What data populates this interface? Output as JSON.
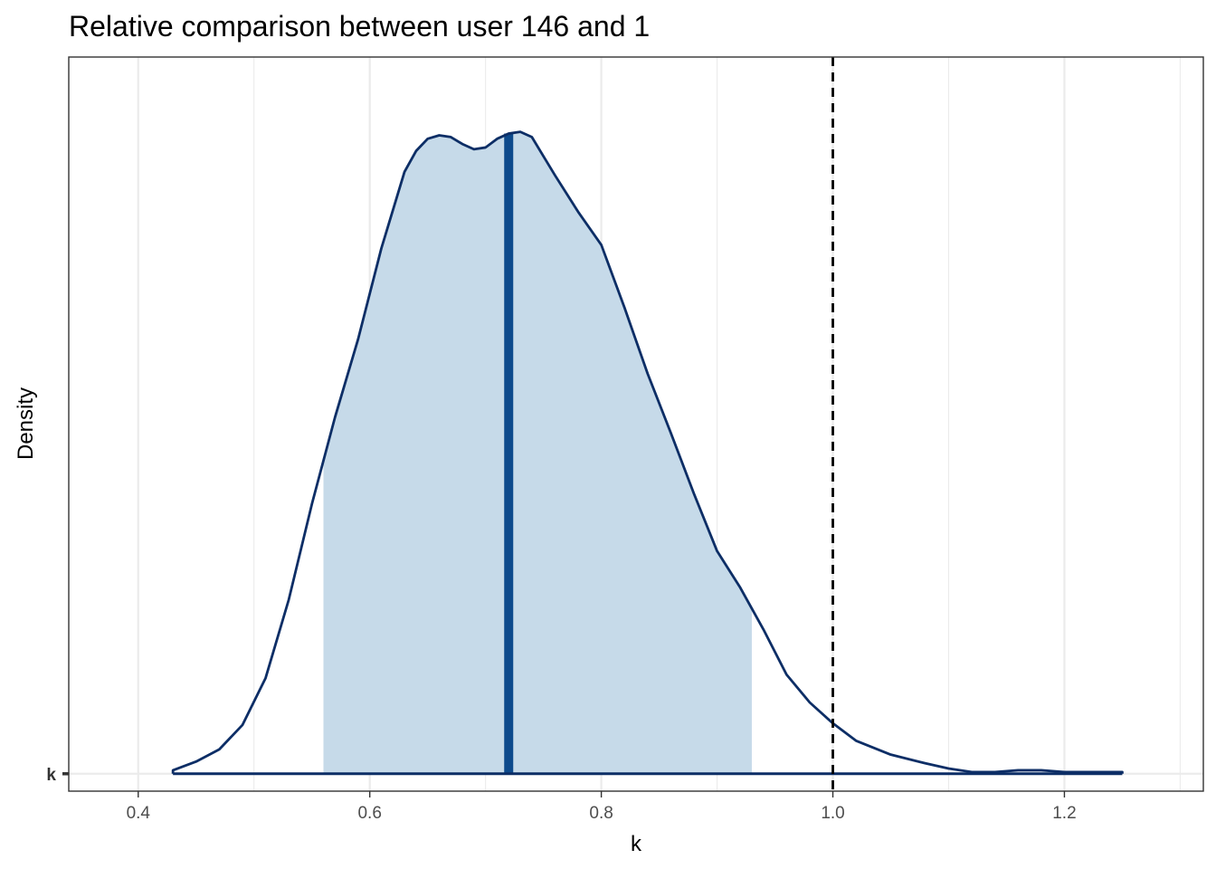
{
  "chart_data": {
    "type": "area",
    "title": "Relative comparison between user 146 and 1",
    "xlabel": "k",
    "ylabel": "Density",
    "xlim": [
      0.34,
      1.32
    ],
    "ylim": [
      -0.1,
      4.12
    ],
    "x_ticks": [
      0.4,
      0.6,
      0.8,
      1.0,
      1.2
    ],
    "x_tick_labels": [
      "0.4",
      "0.6",
      "0.8",
      "1.0",
      "1.2"
    ],
    "x_minor_ticks": [
      0.5,
      0.7,
      0.9,
      1.1,
      1.3
    ],
    "y_tick_labels": [
      "k"
    ],
    "grid": true,
    "series": [
      {
        "x": [
          0.43,
          0.45,
          0.47,
          0.49,
          0.51,
          0.53,
          0.55,
          0.57,
          0.59,
          0.61,
          0.63,
          0.64,
          0.65,
          0.66,
          0.67,
          0.68,
          0.69,
          0.7,
          0.71,
          0.72,
          0.73,
          0.74,
          0.75,
          0.76,
          0.78,
          0.8,
          0.82,
          0.84,
          0.86,
          0.88,
          0.9,
          0.92,
          0.94,
          0.96,
          0.98,
          1.0,
          1.02,
          1.05,
          1.08,
          1.1,
          1.12,
          1.14,
          1.16,
          1.18,
          1.2,
          1.22,
          1.25
        ],
        "y": [
          0.02,
          0.07,
          0.14,
          0.28,
          0.55,
          1.0,
          1.55,
          2.05,
          2.5,
          3.02,
          3.46,
          3.58,
          3.65,
          3.67,
          3.66,
          3.62,
          3.59,
          3.6,
          3.65,
          3.68,
          3.69,
          3.66,
          3.55,
          3.44,
          3.23,
          3.04,
          2.68,
          2.3,
          1.96,
          1.61,
          1.28,
          1.07,
          0.83,
          0.57,
          0.41,
          0.29,
          0.19,
          0.11,
          0.06,
          0.03,
          0.01,
          0.01,
          0.02,
          0.02,
          0.01,
          0.01,
          0.01
        ]
      }
    ],
    "interval": [
      0.56,
      0.93
    ],
    "point_estimate": 0.72,
    "reference_line": 1.0,
    "colors": {
      "curve": "#0d2e66",
      "interval_fill": "#c6dae9",
      "point_line": "#0d4a8c",
      "reference_line": "#000000",
      "grid": "#ebebeb",
      "panel_border": "#333333"
    }
  }
}
